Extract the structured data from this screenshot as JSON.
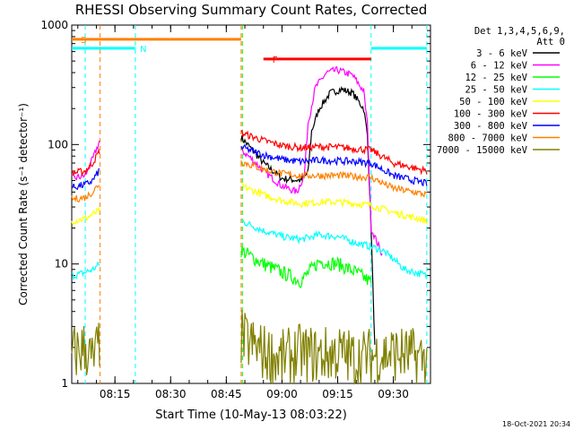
{
  "chart_data": {
    "type": "line",
    "title": "RHESSI Observing Summary Count Rates, Corrected",
    "xlabel": "Start Time (10-May-13 08:03:22)",
    "ylabel": "Corrected Count Rate (s⁻¹ detector⁻¹)",
    "yscale": "log",
    "ylim": [
      1,
      1000
    ],
    "xlim_minutes": [
      "08:03:22",
      "09:40:00"
    ],
    "x_ticks": [
      "08:15",
      "08:30",
      "08:45",
      "09:00",
      "09:15",
      "09:30"
    ],
    "y_ticks": [
      "1",
      "10",
      "100",
      "1000"
    ],
    "legend_header": [
      "Det 1,3,4,5,6,9,",
      "Att 0"
    ],
    "legend_position": "right",
    "footer_date": "18-Oct-2021 20:34",
    "markers": [
      {
        "label": "S",
        "color": "#ff8000",
        "start": "08:03:22",
        "end": "08:49:00",
        "level": 760
      },
      {
        "label": "N",
        "color": "#00ffff",
        "start": "08:03:22",
        "end": "08:20:30",
        "level": 640
      },
      {
        "label": "F",
        "color": "#ff0000",
        "start": "08:55:00",
        "end": "09:24:00",
        "level": 520
      },
      {
        "label": "",
        "color": "#00ffff",
        "start": "09:24:00",
        "end": "09:39:00",
        "level": 640
      }
    ],
    "vlines": [
      {
        "time": "08:07:00",
        "color": "#00ffff"
      },
      {
        "time": "08:11:00",
        "color": "#ff8000"
      },
      {
        "time": "08:20:30",
        "color": "#00ffff"
      },
      {
        "time": "08:49:00",
        "color": "#ff8000"
      },
      {
        "time": "08:49:20",
        "color": "#00ff00"
      },
      {
        "time": "09:24:00",
        "color": "#00ffff"
      },
      {
        "time": "09:39:00",
        "color": "#00ffff"
      }
    ],
    "series": [
      {
        "name": "3 - 6 keV",
        "color": "#000000",
        "segments": [
          {
            "start": "08:49:00",
            "end": "09:25:00",
            "times": [
              "08:49",
              "08:52",
              "08:55",
              "09:00",
              "09:05",
              "09:07",
              "09:08",
              "09:10",
              "09:13",
              "09:16",
              "09:19",
              "09:22",
              "09:23",
              "09:24",
              "09:25"
            ],
            "values": [
              115,
              90,
              70,
              52,
              50,
              58,
              130,
              200,
              270,
              290,
              270,
              200,
              120,
              20,
              2
            ]
          }
        ]
      },
      {
        "name": "6 - 12 keV",
        "color": "#ff00ff",
        "segments": [
          {
            "start": "08:03:22",
            "end": "08:11:00",
            "times": [
              "08:04",
              "08:07",
              "08:09",
              "08:11"
            ],
            "values": [
              52,
              55,
              75,
              110
            ]
          },
          {
            "start": "08:49:00",
            "end": "09:27:00",
            "times": [
              "08:49",
              "08:52",
              "08:55",
              "09:00",
              "09:04",
              "09:06",
              "09:07",
              "09:09",
              "09:12",
              "09:15",
              "09:19",
              "09:22",
              "09:23",
              "09:24",
              "09:27"
            ],
            "values": [
              90,
              75,
              60,
              45,
              40,
              55,
              150,
              300,
              400,
              420,
              380,
              280,
              150,
              20,
              12
            ]
          }
        ]
      },
      {
        "name": "12 - 25 keV",
        "color": "#00ff00",
        "segments": [
          {
            "start": "08:49:00",
            "end": "09:24:00",
            "times": [
              "08:49",
              "08:55",
              "09:00",
              "09:05",
              "09:10",
              "09:15",
              "09:20",
              "09:24"
            ],
            "values": [
              13,
              10,
              8.5,
              7.2,
              10.5,
              10,
              8.5,
              7
            ]
          }
        ]
      },
      {
        "name": "25 - 50 keV",
        "color": "#00ffff",
        "segments": [
          {
            "start": "08:03:22",
            "end": "08:11:00",
            "times": [
              "08:04",
              "08:07",
              "08:09",
              "08:11"
            ],
            "values": [
              8,
              8.5,
              9,
              10
            ]
          },
          {
            "start": "08:49:00",
            "end": "09:39:00",
            "times": [
              "08:49",
              "08:55",
              "09:00",
              "09:05",
              "09:10",
              "09:15",
              "09:20",
              "09:24",
              "09:27",
              "09:30",
              "09:33",
              "09:39"
            ],
            "values": [
              23,
              19,
              17,
              16,
              17.5,
              17,
              15,
              14,
              13,
              11,
              9,
              8
            ]
          }
        ]
      },
      {
        "name": "50 - 100 keV",
        "color": "#ffff00",
        "segments": [
          {
            "start": "08:03:22",
            "end": "08:11:00",
            "times": [
              "08:04",
              "08:07",
              "08:09",
              "08:11"
            ],
            "values": [
              23,
              24,
              26,
              28
            ]
          },
          {
            "start": "08:49:00",
            "end": "09:39:00",
            "times": [
              "08:49",
              "08:55",
              "09:00",
              "09:05",
              "09:10",
              "09:15",
              "09:20",
              "09:24",
              "09:30",
              "09:39"
            ],
            "values": [
              45,
              38,
              34,
              32,
              33,
              33,
              32,
              31,
              27,
              23
            ]
          }
        ]
      },
      {
        "name": "100 - 300 keV",
        "color": "#ff0000",
        "segments": [
          {
            "start": "08:03:22",
            "end": "08:11:00",
            "times": [
              "08:04",
              "08:07",
              "08:09",
              "08:11"
            ],
            "values": [
              58,
              60,
              70,
              90
            ]
          },
          {
            "start": "08:49:00",
            "end": "09:39:00",
            "times": [
              "08:49",
              "08:55",
              "09:00",
              "09:05",
              "09:10",
              "09:15",
              "09:20",
              "09:24",
              "09:30",
              "09:39"
            ],
            "values": [
              125,
              108,
              98,
              94,
              96,
              95,
              92,
              90,
              70,
              60
            ]
          }
        ]
      },
      {
        "name": "300 - 800 keV",
        "color": "#0000ff",
        "segments": [
          {
            "start": "08:03:22",
            "end": "08:11:00",
            "times": [
              "08:04",
              "08:07",
              "08:09",
              "08:11"
            ],
            "values": [
              44,
              46,
              50,
              62
            ]
          },
          {
            "start": "08:49:00",
            "end": "09:39:00",
            "times": [
              "08:49",
              "08:55",
              "09:00",
              "09:05",
              "09:10",
              "09:15",
              "09:20",
              "09:24",
              "09:30",
              "09:39"
            ],
            "values": [
              95,
              82,
              75,
              72,
              74,
              73,
              72,
              70,
              55,
              47
            ]
          }
        ]
      },
      {
        "name": "800 - 7000 keV",
        "color": "#ff8000",
        "segments": [
          {
            "start": "08:03:22",
            "end": "08:11:00",
            "times": [
              "08:04",
              "08:07",
              "08:09",
              "08:11"
            ],
            "values": [
              35,
              36,
              40,
              48
            ]
          },
          {
            "start": "08:49:00",
            "end": "09:39:00",
            "times": [
              "08:49",
              "08:55",
              "09:00",
              "09:05",
              "09:10",
              "09:15",
              "09:20",
              "09:24",
              "09:30",
              "09:39"
            ],
            "values": [
              72,
              62,
              57,
              55,
              55,
              55,
              54,
              53,
              43,
              38
            ]
          }
        ]
      },
      {
        "name": "7000 - 15000 keV",
        "color": "#808000",
        "segments": [
          {
            "start": "08:03:22",
            "end": "08:11:00",
            "times": [
              "08:04",
              "08:07",
              "08:09",
              "08:11"
            ],
            "values": [
              1.8,
              2.0,
              1.5,
              2.2
            ]
          },
          {
            "start": "08:49:00",
            "end": "09:39:00",
            "times": [
              "08:49",
              "08:55",
              "09:00",
              "09:05",
              "09:10",
              "09:15",
              "09:20",
              "09:24",
              "09:30",
              "09:39"
            ],
            "values": [
              2.4,
              1.8,
              1.6,
              1.8,
              1.7,
              1.8,
              1.6,
              1.7,
              1.8,
              1.6
            ]
          }
        ]
      }
    ]
  }
}
